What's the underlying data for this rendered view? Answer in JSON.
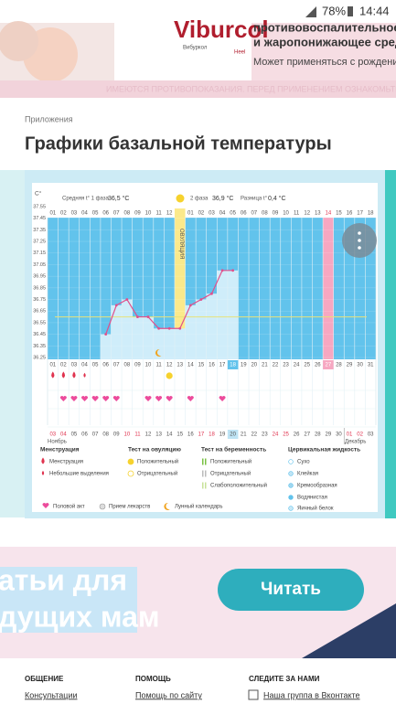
{
  "status_bar": {
    "battery": "78%",
    "time": "14:44"
  },
  "ad": {
    "brand": "Viburcol",
    "brand_sub": "Вибуркол",
    "maker": "Heel",
    "lines": [
      "противовоспалительное",
      "и жаропонижающее средство"
    ],
    "note": "Может применяться с рождения",
    "warning": "ИМЕЮТСЯ ПРОТИВОПОКАЗАНИЯ. ПЕРЕД ПРИМЕНЕНИЕМ ОЗНАКОМЬТЕСЬ С ИНСТРУКЦИЕЙ"
  },
  "breadcrumb": "Приложения",
  "title": "Графики базальной температуры",
  "chart_data": {
    "type": "line",
    "y_unit": "C°",
    "stats": [
      {
        "label": "Средняя t° 1 фаза",
        "value": "36,5 °С"
      },
      {
        "label": "2 фаза",
        "value": "36,9 °С"
      },
      {
        "label": "Разница t°",
        "value": "0,4 °С"
      }
    ],
    "ovulation_label": "ОВУЛЯЦИЯ",
    "phase_days": [
      "01",
      "02",
      "03",
      "04",
      "05",
      "06",
      "07",
      "08",
      "09",
      "10",
      "11",
      "12",
      null,
      "01",
      "02",
      "03",
      "04",
      "05",
      "06",
      "07",
      "08",
      "09",
      "10",
      "11",
      "12",
      "13",
      "14",
      "15",
      "16",
      "17",
      "18"
    ],
    "categories": [
      "01",
      "02",
      "03",
      "04",
      "05",
      "06",
      "07",
      "08",
      "09",
      "10",
      "11",
      "12",
      "13",
      "14",
      "15",
      "16",
      "17",
      "18",
      "19",
      "20",
      "21",
      "22",
      "23",
      "24",
      "25",
      "26",
      "27",
      "28",
      "29",
      "30",
      "31"
    ],
    "dates": [
      "03",
      "04",
      "05",
      "06",
      "07",
      "08",
      "09",
      "10",
      "11",
      "12",
      "13",
      "14",
      "15",
      "16",
      "17",
      "18",
      "19",
      "20",
      "21",
      "22",
      "23",
      "24",
      "25",
      "26",
      "27",
      "28",
      "29",
      "30",
      "01",
      "02",
      "03"
    ],
    "months": [
      "Ноябрь",
      "Декабрь"
    ],
    "weekends": [
      0,
      1,
      7,
      8,
      14,
      15,
      21,
      22,
      28,
      29
    ],
    "today": 17,
    "ovulation_index": 12,
    "pink_index": 26,
    "series": [
      {
        "color": "#e0508c",
        "values": [
          null,
          null,
          null,
          null,
          null,
          36.45,
          36.7,
          36.75,
          36.6,
          36.6,
          36.5,
          36.5,
          36.5,
          36.7,
          36.75,
          36.8,
          37.0,
          37.0,
          null,
          null,
          null,
          null,
          null,
          null,
          null,
          null,
          null,
          null,
          null,
          null,
          null
        ]
      }
    ],
    "coverline": 36.6,
    "ylim": [
      36.25,
      37.55
    ],
    "yticks": [
      37.55,
      37.45,
      37.35,
      37.25,
      37.15,
      37.05,
      36.95,
      36.85,
      36.75,
      36.65,
      36.55,
      36.45,
      36.35,
      36.25
    ],
    "events": {
      "menstruation": [
        1,
        2,
        3
      ],
      "spotting": [
        4
      ],
      "ovulation_test_positive": [
        12
      ],
      "intercourse": [
        2,
        3,
        4,
        5,
        6,
        7,
        10,
        11,
        12,
        14,
        17
      ],
      "moon": [
        11
      ]
    },
    "legend": [
      {
        "title": "Менструация",
        "items": [
          "Менструация",
          "Небольшие выделения"
        ]
      },
      {
        "title": "Тест на овуляцию",
        "items": [
          "Положительный",
          "Отрицательный"
        ]
      },
      {
        "title": "Тест на беременность",
        "items": [
          "Положительный",
          "Отрицательный",
          "Слабоположительный"
        ]
      },
      {
        "title": "Цервикальная жидкость",
        "items": [
          "Сухо",
          "Клейкая",
          "Кремообразная",
          "Водянистая",
          "Яичный белок"
        ]
      }
    ],
    "legend_extra": [
      "Половой акт",
      "Прием лекарств",
      "Лунный календарь"
    ]
  },
  "banner": {
    "lines": [
      "атьи для",
      "дущих мам"
    ],
    "button": "Читать"
  },
  "footer": [
    {
      "title": "ОБЩЕНИЕ",
      "link": "Консультации"
    },
    {
      "title": "ПОМОЩЬ",
      "link": "Помощь по сайту"
    },
    {
      "title": "СЛЕДИТЕ ЗА НАМИ",
      "link": "Наша группа в Вконтакте"
    }
  ]
}
